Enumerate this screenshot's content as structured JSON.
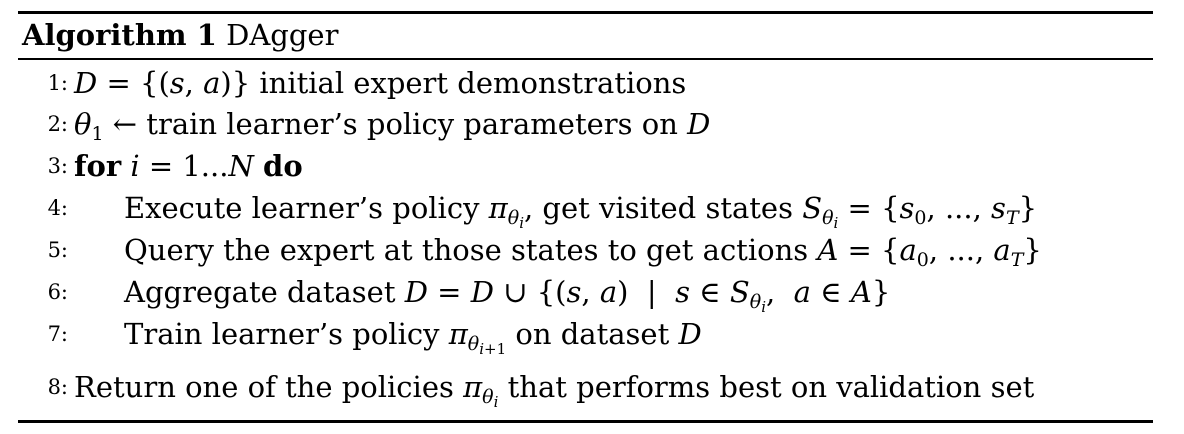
{
  "algorithm": {
    "label": "Algorithm 1",
    "name": "DAgger"
  },
  "lines": [
    {
      "number": "1:",
      "text": "D = {(s, a)} initial expert demonstrations"
    },
    {
      "number": "2:",
      "text": "θ1 ← train learner's policy parameters on D"
    },
    {
      "number": "3:",
      "text": "for i = 1...N do"
    },
    {
      "number": "4:",
      "text": "Execute learner's policy πθi, get visited states Sθi = {s0, ..., sT}"
    },
    {
      "number": "5:",
      "text": "Query the expert at those states to get actions A = {a0, ..., aT}"
    },
    {
      "number": "6:",
      "text": "Aggregate dataset D = D ∪ {(s, a) | s ∈ Sθi, a ∈ A}"
    },
    {
      "number": "7:",
      "text": "Train learner's policy πθi+1 on dataset D"
    },
    {
      "number": "8:",
      "text": "Return one of the policies πθi that performs best on validation set"
    }
  ],
  "keywords": {
    "for": "for",
    "do": "do"
  }
}
